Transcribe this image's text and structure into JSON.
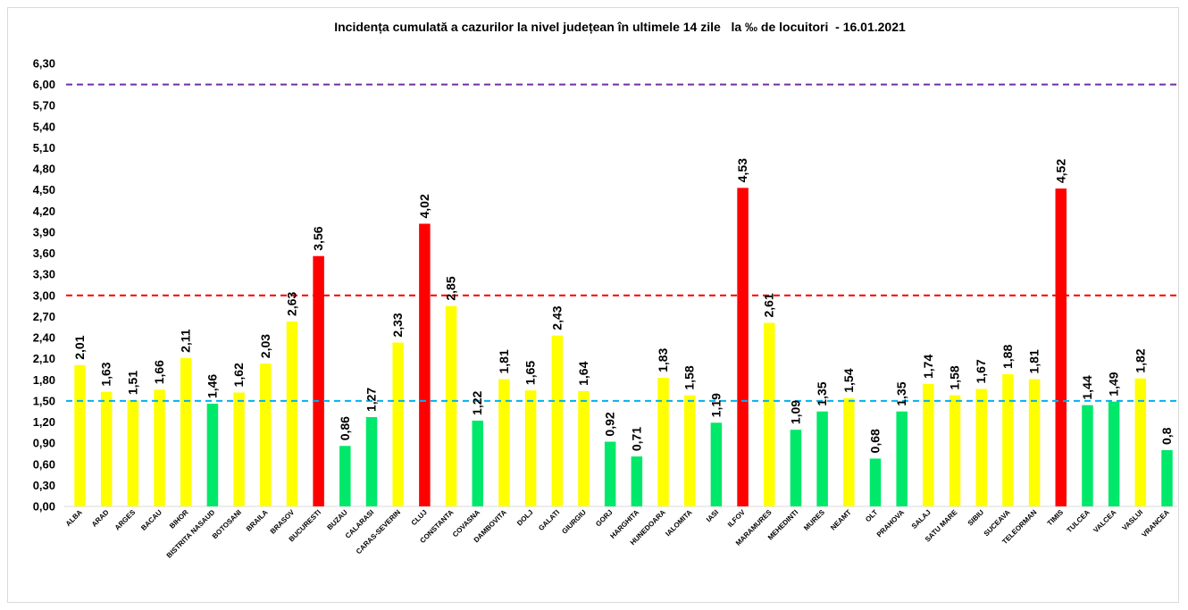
{
  "chart_data": {
    "type": "bar",
    "title": "Incidența cumulată a cazurilor la nivel județean în ultimele 14 zile   la ‰ de locuitori  - 16.01.2021",
    "xlabel": "",
    "ylabel": "",
    "ylim": [
      0,
      6.3
    ],
    "yticks": [
      "0,00",
      "0,30",
      "0,60",
      "0,90",
      "1,20",
      "1,50",
      "1,80",
      "2,10",
      "2,40",
      "2,70",
      "3,00",
      "3,30",
      "3,60",
      "3,90",
      "4,20",
      "4,50",
      "4,80",
      "5,10",
      "5,40",
      "5,70",
      "6,00",
      "6,30"
    ],
    "grid": false,
    "legend": "none",
    "categories": [
      "ALBA",
      "ARAD",
      "ARGES",
      "BACAU",
      "BIHOR",
      "BISTRITA NASAUD",
      "BOTOSANI",
      "BRAILA",
      "BRASOV",
      "BUCURESTI",
      "BUZAU",
      "CALARASI",
      "CARAS-SEVERIN",
      "CLUJ",
      "CONSTANTA",
      "COVASNA",
      "DAMBOVITA",
      "DOLJ",
      "GALATI",
      "GIURGIU",
      "GORJ",
      "HARGHITA",
      "HUNEDOARA",
      "IALOMITA",
      "IASI",
      "ILFOV",
      "MARAMURES",
      "MEHEDINTI",
      "MURES",
      "NEAMT",
      "OLT",
      "PRAHOVA",
      "SALAJ",
      "SATU MARE",
      "SIBIU",
      "SUCEAVA",
      "TELEORMAN",
      "TIMIS",
      "TULCEA",
      "VALCEA",
      "VASLUI",
      "VRANCEA"
    ],
    "values": [
      2.01,
      1.63,
      1.51,
      1.66,
      2.11,
      1.46,
      1.62,
      2.03,
      2.63,
      3.56,
      0.86,
      1.27,
      2.33,
      4.02,
      2.85,
      1.22,
      1.81,
      1.65,
      2.43,
      1.64,
      0.92,
      0.71,
      1.83,
      1.58,
      1.19,
      4.53,
      2.61,
      1.09,
      1.35,
      1.54,
      0.68,
      1.35,
      1.74,
      1.58,
      1.67,
      1.88,
      1.81,
      4.52,
      1.44,
      1.49,
      1.82,
      0.8
    ],
    "value_labels": [
      "2,01",
      "1,63",
      "1,51",
      "1,66",
      "2,11",
      "1,46",
      "1,62",
      "2,03",
      "2,63",
      "3,56",
      "0,86",
      "1,27",
      "2,33",
      "4,02",
      "2,85",
      "1,22",
      "1,81",
      "1,65",
      "2,43",
      "1,64",
      "0,92",
      "0,71",
      "1,83",
      "1,58",
      "1,19",
      "4,53",
      "2,61",
      "1,09",
      "1,35",
      "1,54",
      "0,68",
      "1,35",
      "1,74",
      "1,58",
      "1,67",
      "1,88",
      "1,81",
      "4,52",
      "1,44",
      "1,49",
      "1,82",
      "0,8"
    ],
    "thresholds": [
      {
        "value": 6.0,
        "color": "#7030a0",
        "style": "dashed"
      },
      {
        "value": 3.0,
        "color": "#ff0000",
        "style": "dashed"
      },
      {
        "value": 1.5,
        "color": "#00b0f0",
        "style": "dashed"
      }
    ],
    "colors": {
      "high": "#ff0000",
      "medium": "#ffff00",
      "low": "#00e86a"
    }
  }
}
